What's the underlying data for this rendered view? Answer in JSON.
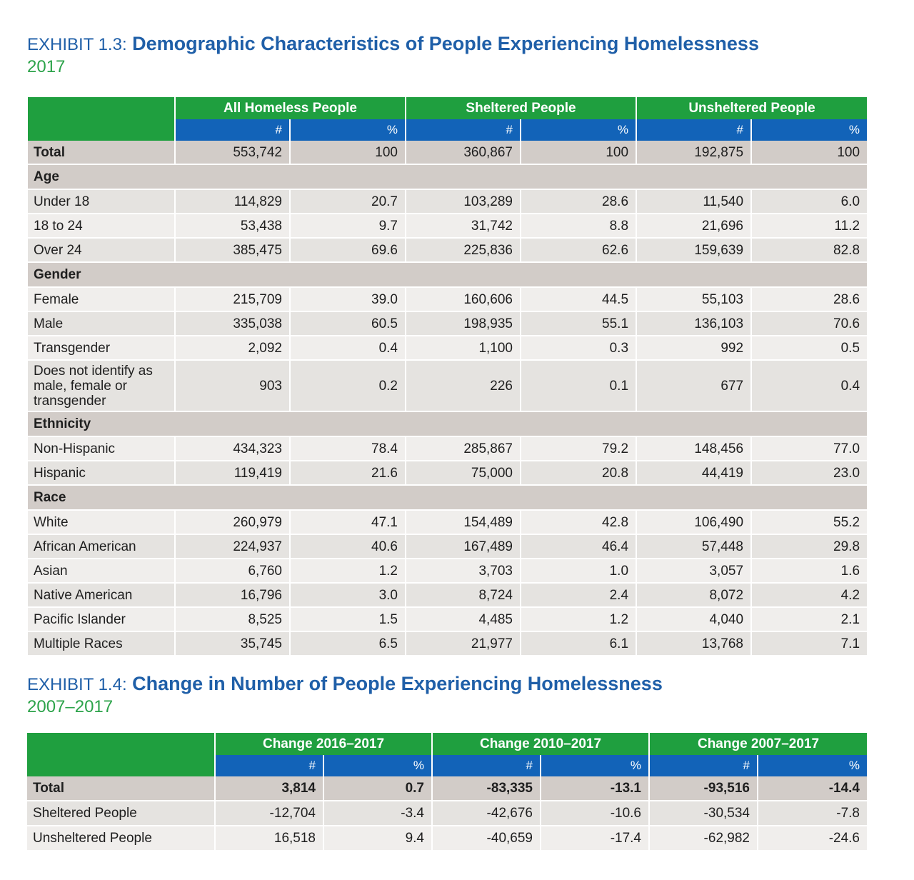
{
  "exhibit13": {
    "label": "EXHIBIT 1.3:",
    "title": "Demographic Characteristics of People Experiencing Homelessness",
    "subtitle": "2017",
    "groups": [
      "All Homeless People",
      "Sheltered People",
      "Unsheltered People"
    ],
    "subheaders": [
      "#",
      "%",
      "#",
      "%",
      "#",
      "%"
    ],
    "rows": [
      {
        "kind": "total",
        "label": "Total",
        "values": [
          "553,742",
          "100",
          "360,867",
          "100",
          "192,875",
          "100"
        ]
      },
      {
        "kind": "section",
        "label": "Age"
      },
      {
        "kind": "data",
        "label": "Under 18",
        "values": [
          "114,829",
          "20.7",
          "103,289",
          "28.6",
          "11,540",
          "6.0"
        ]
      },
      {
        "kind": "data",
        "label": "18 to 24",
        "values": [
          "53,438",
          "9.7",
          "31,742",
          "8.8",
          "21,696",
          "11.2"
        ]
      },
      {
        "kind": "data",
        "label": "Over 24",
        "values": [
          "385,475",
          "69.6",
          "225,836",
          "62.6",
          "159,639",
          "82.8"
        ]
      },
      {
        "kind": "section",
        "label": "Gender"
      },
      {
        "kind": "data",
        "label": "Female",
        "values": [
          "215,709",
          "39.0",
          "160,606",
          "44.5",
          "55,103",
          "28.6"
        ]
      },
      {
        "kind": "data",
        "label": "Male",
        "values": [
          "335,038",
          "60.5",
          "198,935",
          "55.1",
          "136,103",
          "70.6"
        ]
      },
      {
        "kind": "data",
        "label": "Transgender",
        "values": [
          "2,092",
          "0.4",
          "1,100",
          "0.3",
          "992",
          "0.5"
        ]
      },
      {
        "kind": "data",
        "tall": true,
        "label": "Does not identify as male, female or transgender",
        "values": [
          "903",
          "0.2",
          "226",
          "0.1",
          "677",
          "0.4"
        ]
      },
      {
        "kind": "section",
        "label": "Ethnicity"
      },
      {
        "kind": "data",
        "label": "Non-Hispanic",
        "values": [
          "434,323",
          "78.4",
          "285,867",
          "79.2",
          "148,456",
          "77.0"
        ]
      },
      {
        "kind": "data",
        "label": "Hispanic",
        "values": [
          "119,419",
          "21.6",
          "75,000",
          "20.8",
          "44,419",
          "23.0"
        ]
      },
      {
        "kind": "section",
        "label": "Race"
      },
      {
        "kind": "data",
        "label": "White",
        "values": [
          "260,979",
          "47.1",
          "154,489",
          "42.8",
          "106,490",
          "55.2"
        ]
      },
      {
        "kind": "data",
        "label": "African American",
        "values": [
          "224,937",
          "40.6",
          "167,489",
          "46.4",
          "57,448",
          "29.8"
        ]
      },
      {
        "kind": "data",
        "label": "Asian",
        "values": [
          "6,760",
          "1.2",
          "3,703",
          "1.0",
          "3,057",
          "1.6"
        ]
      },
      {
        "kind": "data",
        "label": "Native American",
        "values": [
          "16,796",
          "3.0",
          "8,724",
          "2.4",
          "8,072",
          "4.2"
        ]
      },
      {
        "kind": "data",
        "label": "Pacific Islander",
        "values": [
          "8,525",
          "1.5",
          "4,485",
          "1.2",
          "4,040",
          "2.1"
        ]
      },
      {
        "kind": "data",
        "label": "Multiple Races",
        "values": [
          "35,745",
          "6.5",
          "21,977",
          "6.1",
          "13,768",
          "7.1"
        ]
      }
    ]
  },
  "exhibit14": {
    "label": "EXHIBIT 1.4:",
    "title": "Change in Number of People Experiencing Homelessness",
    "subtitle": "2007–2017",
    "groups": [
      "Change 2016–2017",
      "Change 2010–2017",
      "Change 2007–2017"
    ],
    "subheaders": [
      "#",
      "%",
      "#",
      "%",
      "#",
      "%"
    ],
    "rows": [
      {
        "kind": "total",
        "label": "Total",
        "values": [
          "3,814",
          "0.7",
          "-83,335",
          "-13.1",
          "-93,516",
          "-14.4"
        ]
      },
      {
        "kind": "data",
        "label": "Sheltered People",
        "values": [
          "-12,704",
          "-3.4",
          "-42,676",
          "-10.6",
          "-30,534",
          "-7.8"
        ]
      },
      {
        "kind": "data",
        "label": "Unsheltered People",
        "values": [
          "16,518",
          "9.4",
          "-40,659",
          "-17.4",
          "-62,982",
          "-24.6"
        ]
      }
    ]
  },
  "colors": {
    "title_blue": "#1f5fa8",
    "subtitle_green": "#2ca34a",
    "header_green": "#1f9f3f",
    "header_blue": "#1263b8",
    "section_gray": "#d2ccc8",
    "row_gray_a": "#e5e3e0",
    "row_gray_b": "#f0eeec"
  }
}
